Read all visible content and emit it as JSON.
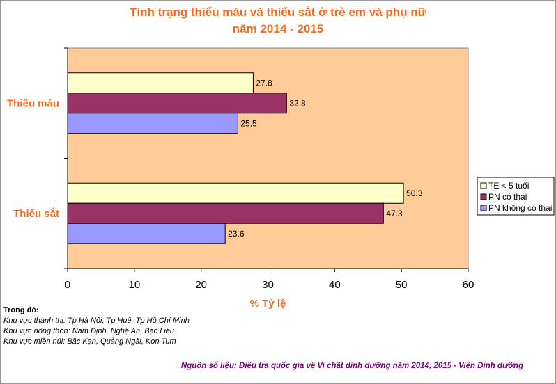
{
  "chart_data": {
    "type": "bar",
    "orientation": "horizontal",
    "title": "Tình trạng thiếu máu và thiếu sắt ở trẻ em và phụ nữ",
    "subtitle": "năm 2014 - 2015",
    "xlabel": "% Tỷ lệ",
    "ylabel": "",
    "xlim": [
      0,
      60
    ],
    "xticks": [
      "0",
      "10",
      "20",
      "30",
      "40",
      "50",
      "60"
    ],
    "grid": false,
    "legend_position": "right",
    "plot_background": "#FFCC99",
    "categories": [
      "Thiếu máu",
      "Thiếu sắt"
    ],
    "series": [
      {
        "name": "TE < 5 tuổi",
        "color": "#FFFFCC",
        "values": [
          27.8,
          50.3
        ],
        "labels": [
          "27.8",
          "50.3"
        ]
      },
      {
        "name": "PN có thai",
        "color": "#993366",
        "values": [
          32.8,
          47.3
        ],
        "labels": [
          "32.8",
          "47.3"
        ]
      },
      {
        "name": "PN không có thai",
        "color": "#9999FF",
        "values": [
          25.5,
          23.6
        ],
        "labels": [
          "25.5",
          "23.6"
        ]
      }
    ]
  },
  "notes": {
    "heading": "Trong đó:",
    "lines": [
      "Khu vực thành thị: Tp Hà Nội, Tp Huế, Tp Hồ Chí Minh",
      "Khu vực nông thôn: Nam Định, Nghệ An, Bạc Liêu",
      "Khu vực miền núi: Bắc Kạn, Quảng Ngãi, Kon Tum"
    ]
  },
  "source": "Nguồn số liệu: Điều tra quốc gia về Vi chất dinh dưỡng năm 2014, 2015 - Viện Dinh dưỡng"
}
